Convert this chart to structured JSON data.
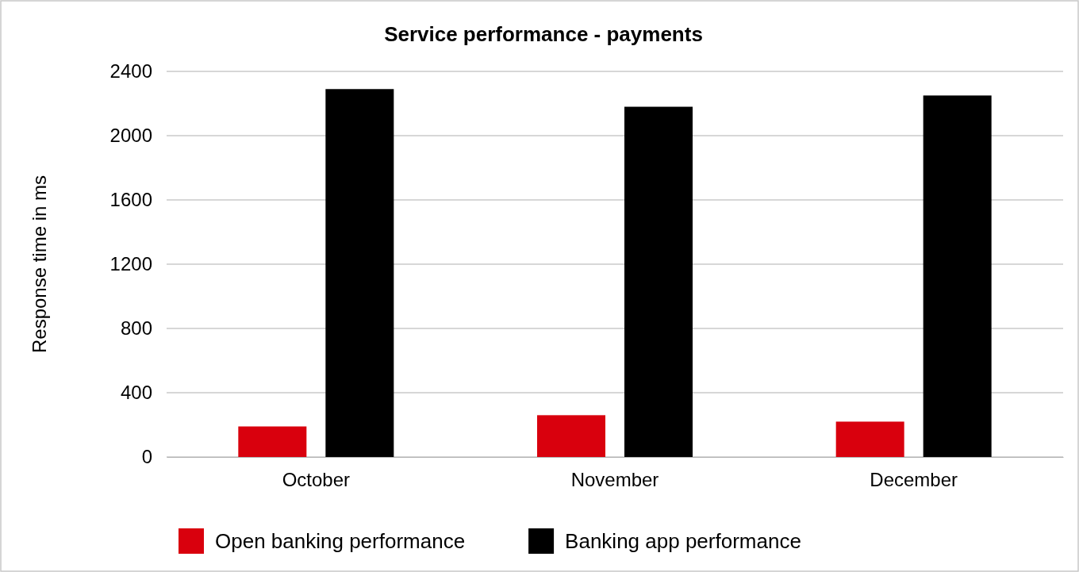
{
  "chart_data": {
    "type": "bar",
    "title": "Service performance - payments",
    "ylabel": "Response time in ms",
    "categories": [
      "October",
      "November",
      "December"
    ],
    "series": [
      {
        "name": "Open banking performance",
        "color": "#d9000d",
        "values": [
          190,
          260,
          220
        ]
      },
      {
        "name": "Banking app performance",
        "color": "#000000",
        "values": [
          2290,
          2180,
          2250
        ]
      }
    ],
    "ylim": [
      0,
      2400
    ],
    "yticks": [
      0,
      400,
      800,
      1200,
      1600,
      2000,
      2400
    ],
    "grid": "y",
    "legend": "bottom"
  }
}
